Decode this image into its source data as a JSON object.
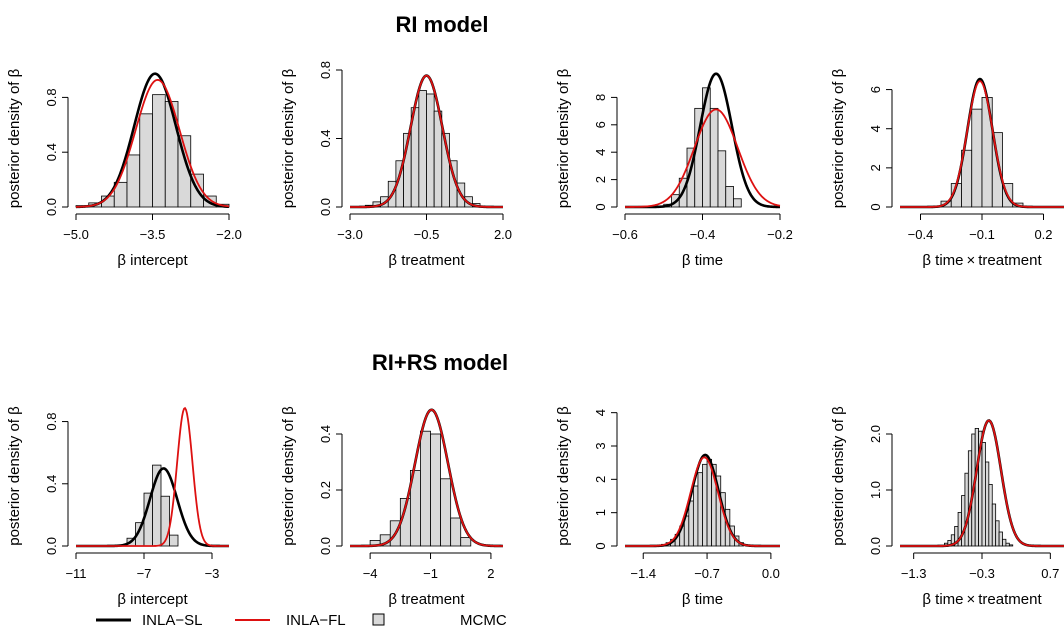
{
  "sections": [
    {
      "title": "RI model"
    },
    {
      "title": "RI+RS model"
    }
  ],
  "legend": {
    "items": [
      {
        "label": "INLA−SL",
        "kind": "line",
        "color": "#000000"
      },
      {
        "label": "INLA−FL",
        "kind": "line",
        "color": "#dd1111"
      },
      {
        "label": "MCMC",
        "kind": "box",
        "color": "#d9d9d9"
      }
    ]
  },
  "chart_data": [
    {
      "type": "area",
      "section": "RI model",
      "xlabel": "β intercept",
      "ylabel": "posterior density of β",
      "xlim": [
        -5.0,
        -2.0
      ],
      "ylim": [
        0,
        1.0
      ],
      "xticks": [
        {
          "value": -5.0,
          "label": "−5.0"
        },
        {
          "value": -3.5,
          "label": "−3.5"
        },
        {
          "value": -2.0,
          "label": "−2.0"
        }
      ],
      "yticks": [
        {
          "value": 0.0,
          "label": "0.0"
        },
        {
          "value": 0.4,
          "label": "0.4"
        },
        {
          "value": 0.8,
          "label": "0.8"
        }
      ],
      "histogram": {
        "bins": [
          -5.0,
          -4.75,
          -4.5,
          -4.25,
          -4.0,
          -3.75,
          -3.5,
          -3.25,
          -3.0,
          -2.75,
          -2.5,
          -2.25,
          -2.0
        ],
        "density": [
          0.01,
          0.03,
          0.08,
          0.18,
          0.38,
          0.68,
          0.82,
          0.77,
          0.52,
          0.24,
          0.08,
          0.02
        ]
      },
      "series": [
        {
          "name": "INLA−SL",
          "mean": -3.45,
          "sd": 0.41,
          "color": "#000000"
        },
        {
          "name": "INLA−FL",
          "mean": -3.4,
          "sd": 0.43,
          "color": "#dd1111"
        }
      ]
    },
    {
      "type": "area",
      "section": "RI model",
      "xlabel": "β treatment",
      "ylabel": "posterior density of β",
      "xlim": [
        -3.0,
        2.0
      ],
      "ylim": [
        0,
        0.8
      ],
      "xticks": [
        {
          "value": -3.0,
          "label": "−3.0"
        },
        {
          "value": -0.5,
          "label": "−0.5"
        },
        {
          "value": 2.0,
          "label": "2.0"
        }
      ],
      "yticks": [
        {
          "value": 0.0,
          "label": "0.0"
        },
        {
          "value": 0.4,
          "label": "0.4"
        },
        {
          "value": 0.8,
          "label": "0.8"
        }
      ],
      "histogram": {
        "bins": [
          -2.5,
          -2.25,
          -2.0,
          -1.75,
          -1.5,
          -1.25,
          -1.0,
          -0.75,
          -0.5,
          -0.25,
          0.0,
          0.25,
          0.5,
          0.75,
          1.0,
          1.25
        ],
        "density": [
          0.01,
          0.03,
          0.06,
          0.15,
          0.27,
          0.43,
          0.58,
          0.68,
          0.66,
          0.56,
          0.43,
          0.27,
          0.14,
          0.06,
          0.02
        ]
      },
      "series": [
        {
          "name": "INLA−SL",
          "mean": -0.5,
          "sd": 0.52,
          "color": "#000000"
        },
        {
          "name": "INLA−FL",
          "mean": -0.5,
          "sd": 0.52,
          "color": "#dd1111"
        }
      ]
    },
    {
      "type": "area",
      "section": "RI model",
      "xlabel": "β time",
      "ylabel": "posterior density of β",
      "xlim": [
        -0.6,
        -0.2
      ],
      "ylim": [
        0,
        10
      ],
      "xticks": [
        {
          "value": -0.6,
          "label": "−0.6"
        },
        {
          "value": -0.4,
          "label": "−0.4"
        },
        {
          "value": -0.2,
          "label": "−0.2"
        }
      ],
      "yticks": [
        {
          "value": 0,
          "label": "0"
        },
        {
          "value": 2,
          "label": "2"
        },
        {
          "value": 4,
          "label": "4"
        },
        {
          "value": 6,
          "label": "6"
        },
        {
          "value": 8,
          "label": "8"
        }
      ],
      "histogram": {
        "bins": [
          -0.5,
          -0.48,
          -0.46,
          -0.44,
          -0.42,
          -0.4,
          -0.38,
          -0.36,
          -0.34,
          -0.32,
          -0.3
        ],
        "density": [
          0.2,
          0.9,
          2.1,
          4.3,
          7.2,
          8.7,
          7.2,
          4.1,
          1.5,
          0.6
        ]
      },
      "series": [
        {
          "name": "INLA−SL",
          "mean": -0.365,
          "sd": 0.041,
          "color": "#000000"
        },
        {
          "name": "INLA−FL",
          "mean": -0.365,
          "sd": 0.056,
          "color": "#dd1111"
        }
      ]
    },
    {
      "type": "area",
      "section": "RI model",
      "xlabel": "β time × treatment",
      "ylabel": "posterior density of β",
      "xlim": [
        -0.5,
        0.3
      ],
      "ylim": [
        0,
        7
      ],
      "xticks": [
        {
          "value": -0.4,
          "label": "−0.4"
        },
        {
          "value": -0.1,
          "label": "−0.1"
        },
        {
          "value": 0.2,
          "label": "0.2"
        }
      ],
      "yticks": [
        {
          "value": 0,
          "label": "0"
        },
        {
          "value": 2,
          "label": "2"
        },
        {
          "value": 4,
          "label": "4"
        },
        {
          "value": 6,
          "label": "6"
        }
      ],
      "histogram": {
        "bins": [
          -0.3,
          -0.25,
          -0.2,
          -0.15,
          -0.1,
          -0.05,
          0.0,
          0.05,
          0.1
        ],
        "density": [
          0.3,
          1.2,
          2.9,
          5.0,
          5.6,
          3.8,
          1.2,
          0.2
        ]
      },
      "series": [
        {
          "name": "INLA−SL",
          "mean": -0.11,
          "sd": 0.061,
          "color": "#000000"
        },
        {
          "name": "INLA−FL",
          "mean": -0.11,
          "sd": 0.062,
          "color": "#dd1111"
        }
      ]
    },
    {
      "type": "area",
      "section": "RI+RS model",
      "xlabel": "β intercept",
      "ylabel": "posterior density of β",
      "xlim": [
        -11,
        -2
      ],
      "ylim": [
        0,
        0.9
      ],
      "xticks": [
        {
          "value": -11,
          "label": "−11"
        },
        {
          "value": -7,
          "label": "−7"
        },
        {
          "value": -3,
          "label": "−3"
        }
      ],
      "yticks": [
        {
          "value": 0.0,
          "label": "0.0"
        },
        {
          "value": 0.4,
          "label": "0.4"
        },
        {
          "value": 0.8,
          "label": "0.8"
        }
      ],
      "histogram": {
        "bins": [
          -8.0,
          -7.5,
          -7.0,
          -6.5,
          -6.0,
          -5.5,
          -5.0
        ],
        "density": [
          0.05,
          0.15,
          0.34,
          0.52,
          0.32,
          0.07
        ]
      },
      "series": [
        {
          "name": "INLA−SL",
          "mean": -5.85,
          "sd": 0.8,
          "color": "#000000"
        },
        {
          "name": "INLA−FL",
          "mean": -4.6,
          "sd": 0.45,
          "color": "#dd1111"
        }
      ]
    },
    {
      "type": "area",
      "section": "RI+RS model",
      "xlabel": "β treatment",
      "ylabel": "posterior density of β",
      "xlim": [
        -5,
        2.6
      ],
      "ylim": [
        0,
        0.5
      ],
      "xticks": [
        {
          "value": -4,
          "label": "−4"
        },
        {
          "value": -1,
          "label": "−1"
        },
        {
          "value": 2,
          "label": "2"
        }
      ],
      "yticks": [
        {
          "value": 0.0,
          "label": "0.0"
        },
        {
          "value": 0.2,
          "label": "0.2"
        },
        {
          "value": 0.4,
          "label": "0.4"
        }
      ],
      "histogram": {
        "bins": [
          -4.0,
          -3.5,
          -3.0,
          -2.5,
          -2.0,
          -1.5,
          -1.0,
          -0.5,
          0.0,
          0.5,
          1.0
        ],
        "density": [
          0.02,
          0.04,
          0.09,
          0.17,
          0.27,
          0.41,
          0.4,
          0.24,
          0.1,
          0.03
        ]
      },
      "series": [
        {
          "name": "INLA−SL",
          "mean": -0.95,
          "sd": 0.82,
          "color": "#000000"
        },
        {
          "name": "INLA−FL",
          "mean": -0.95,
          "sd": 0.82,
          "color": "#dd1111"
        }
      ]
    },
    {
      "type": "area",
      "section": "RI+RS model",
      "xlabel": "β time",
      "ylabel": "posterior density of β",
      "xlim": [
        -1.6,
        0.1
      ],
      "ylim": [
        0,
        4.2
      ],
      "xticks": [
        {
          "value": -1.4,
          "label": "−1.4"
        },
        {
          "value": -0.7,
          "label": "−0.7"
        },
        {
          "value": 0.0,
          "label": "0.0"
        }
      ],
      "yticks": [
        {
          "value": 0,
          "label": "0"
        },
        {
          "value": 1,
          "label": "1"
        },
        {
          "value": 2,
          "label": "2"
        },
        {
          "value": 3,
          "label": "3"
        },
        {
          "value": 4,
          "label": "4"
        }
      ],
      "histogram": {
        "bins": [
          -1.2,
          -1.15,
          -1.1,
          -1.05,
          -1.0,
          -0.95,
          -0.9,
          -0.85,
          -0.8,
          -0.75,
          -0.7,
          -0.65,
          -0.6,
          -0.55,
          -0.5,
          -0.45,
          -0.4,
          -0.35,
          -0.3
        ],
        "density": [
          0.05,
          0.1,
          0.2,
          0.35,
          0.6,
          0.9,
          1.35,
          1.8,
          2.2,
          2.45,
          2.6,
          2.45,
          2.1,
          1.6,
          1.1,
          0.6,
          0.3,
          0.1
        ]
      },
      "series": [
        {
          "name": "INLA−SL",
          "mean": -0.72,
          "sd": 0.146,
          "color": "#000000"
        },
        {
          "name": "INLA−FL",
          "mean": -0.73,
          "sd": 0.15,
          "color": "#dd1111"
        }
      ]
    },
    {
      "type": "area",
      "section": "RI+RS model",
      "xlabel": "β time × treatment",
      "ylabel": "posterior density of β",
      "xlim": [
        -1.5,
        0.9
      ],
      "ylim": [
        0,
        2.5
      ],
      "xticks": [
        {
          "value": -1.3,
          "label": "−1.3"
        },
        {
          "value": -0.3,
          "label": "−0.3"
        },
        {
          "value": 0.7,
          "label": "0.7"
        }
      ],
      "yticks": [
        {
          "value": 0.0,
          "label": "0.0"
        },
        {
          "value": 1.0,
          "label": "1.0"
        },
        {
          "value": 2.0,
          "label": "2.0"
        }
      ],
      "histogram": {
        "bins": [
          -0.85,
          -0.8,
          -0.75,
          -0.7,
          -0.65,
          -0.6,
          -0.55,
          -0.5,
          -0.45,
          -0.4,
          -0.35,
          -0.3,
          -0.25,
          -0.2,
          -0.15,
          -0.1,
          -0.05,
          0.0,
          0.05,
          0.1,
          0.15
        ],
        "density": [
          0.05,
          0.1,
          0.2,
          0.35,
          0.6,
          0.9,
          1.3,
          1.7,
          2.0,
          2.1,
          2.05,
          1.85,
          1.5,
          1.1,
          0.75,
          0.45,
          0.25,
          0.12,
          0.05,
          0.02
        ]
      },
      "series": [
        {
          "name": "INLA−SL",
          "mean": -0.2,
          "sd": 0.178,
          "color": "#000000"
        },
        {
          "name": "INLA−FL",
          "mean": -0.2,
          "sd": 0.178,
          "color": "#dd1111"
        }
      ]
    }
  ]
}
